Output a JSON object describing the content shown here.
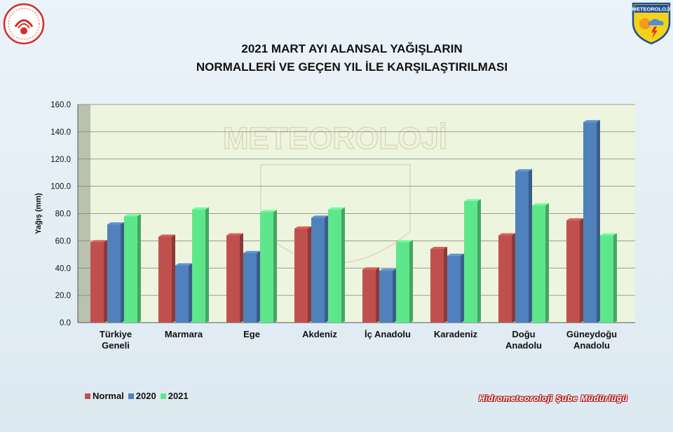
{
  "title_line1": "2021 MART AYI ALANSAL YAĞIŞLARIN",
  "title_line2": "NORMALLERİ VE GEÇEN YIL İLE KARŞILAŞTIRILMASI",
  "right_logo_text": "METEOROLOJİ",
  "watermark_text": "METEOROLOJİ",
  "credit": "Hidrometeoroloji Şube Müdürlüğü",
  "colors": {
    "normal": "#c0504d",
    "y2020": "#4f81bd",
    "y2021": "#5ee68a",
    "plot_bg": "#eef5de",
    "side_wall": "#b9c2ad"
  },
  "chart_data": {
    "type": "bar",
    "title": "2021 MART AYI ALANSAL YAĞIŞLARIN NORMALLERİ VE GEÇEN YIL İLE KARŞILAŞTIRILMASI",
    "xlabel": "",
    "ylabel": "Yağış (mm)",
    "ylim": [
      0,
      160
    ],
    "yticks": [
      "0.0",
      "20.0",
      "40.0",
      "60.0",
      "80.0",
      "100.0",
      "120.0",
      "140.0",
      "160.0"
    ],
    "grid": true,
    "legend_position": "bottom-left",
    "categories": [
      [
        "Türkiye",
        "Geneli"
      ],
      [
        "Marmara"
      ],
      [
        "Ege"
      ],
      [
        "Akdeniz"
      ],
      [
        "İç Anadolu"
      ],
      [
        "Karadeniz"
      ],
      [
        "Doğu",
        "Anadolu"
      ],
      [
        "Güneydoğu",
        "Anadolu"
      ]
    ],
    "series": [
      {
        "name": "Normal",
        "values": [
          59,
          63,
          64,
          69,
          39,
          54,
          64,
          75
        ]
      },
      {
        "name": "2020",
        "values": [
          72,
          42,
          51,
          77,
          38,
          49,
          111,
          147
        ]
      },
      {
        "name": "2021",
        "values": [
          78,
          83,
          81,
          83,
          59,
          89,
          86,
          64
        ]
      }
    ]
  }
}
